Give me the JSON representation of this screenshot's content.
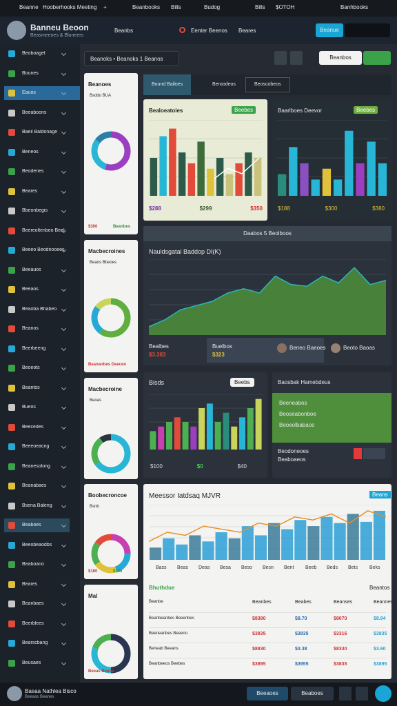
{
  "topbar": {
    "items": [
      "Beanne",
      "Hooberhooks Meeting",
      "+",
      "Beanbooks",
      "Bills",
      "Budog",
      "Bills",
      "$OTOH",
      "Banhbooks"
    ]
  },
  "header": {
    "title": "Banneu Beoon",
    "subtitle": "Beasmeeoes & Bluneers",
    "nav": [
      "Beanbs",
      "Eenter Beenos",
      "Beares"
    ],
    "button": "Beanue"
  },
  "sidebar": {
    "items": [
      "Beoboaget",
      "Bounes",
      "Eauos",
      "Beeaboons",
      "Baeil Baldonage",
      "Beneos",
      "Beodenes",
      "Beares",
      "Bbeonbegis",
      "Beereoltenbeo Beelos",
      "Beeeo Beodnooees",
      "Beeauos",
      "Beeaos",
      "Beaoba Bhabeo",
      "Beanos",
      "Beerbeeng",
      "Beoeots",
      "Beantos",
      "Bueos",
      "Beecedes",
      "Beeeoeacng",
      "Beanesolong",
      "Beanabaes",
      "Bsena Baleng",
      "Beaboes",
      "Beeobeaodbs",
      "Beaboano",
      "Beares",
      "Beanbaes",
      "Beerblees",
      "Bearscbang",
      "Beusaes"
    ]
  },
  "filter": {
    "dropdown": "Beanoks • Beanoks 1 Beanos",
    "button": "Beanbos"
  },
  "tabs": [
    "Bound Bailoes",
    "Beroodeos",
    "Beoscobeos"
  ],
  "left_cards": [
    {
      "title": "Beanoes",
      "subtitle": "Bsddo BUA",
      "donut": {
        "values": [
          55,
          30,
          15
        ],
        "colors": [
          "#9b3fc0",
          "#27b6d6",
          "#2a7fa8"
        ]
      },
      "labels": [
        "$300",
        "Beanbes"
      ]
    },
    {
      "title": "Macbecroines",
      "subtitle": "Beaos Bbeoes",
      "donut": {
        "values": [
          60,
          25,
          15
        ],
        "colors": [
          "#5fae3f",
          "#27a9d6",
          "#c9d45a"
        ]
      },
      "labels": [
        "Beananbes Deecen"
      ]
    },
    {
      "title": "Macbecroine",
      "subtitle": "Beoas",
      "donut": {
        "values": [
          65,
          25,
          10
        ],
        "colors": [
          "#27b6d6",
          "#4caf50",
          "#2a3440"
        ]
      },
      "labels": []
    },
    {
      "title": "Boobecroncoe",
      "subtitle": "Bsnb",
      "donut": {
        "values": [
          25,
          20,
          20,
          20,
          15
        ],
        "colors": [
          "#c73fb0",
          "#27a9d6",
          "#e0c23a",
          "#4caf50",
          "#e24a3a"
        ]
      },
      "labels": [
        "$180",
        "$100"
      ]
    },
    {
      "title": "Mal",
      "subtitle": "",
      "donut": {
        "values": [
          50,
          30,
          20
        ],
        "colors": [
          "#2a3650",
          "#27b6d6",
          "#4caf50"
        ]
      },
      "labels": [
        "Beeas Beane"
      ]
    }
  ],
  "cards": {
    "light": {
      "title": "Bealoeatoies",
      "badge": "Beebes",
      "labels": [
        "$288",
        "$299",
        "$350"
      ],
      "values": [
        35,
        55,
        62,
        40,
        30,
        50,
        25,
        35,
        20,
        30,
        40,
        35
      ],
      "colors": [
        "#2e5a4a",
        "#27b6d6",
        "#e24a3a",
        "#2e5a4a",
        "#e24a3a",
        "#3d6b3a",
        "#e0c23a",
        "#2e5a4a",
        "#c9c27a",
        "#e24a3a",
        "#2e5a4a",
        "#c9c27a"
      ]
    },
    "dark": {
      "title": "Baarlboes Deevor",
      "badge": "Beebes",
      "labels": [
        "$188",
        "$300",
        "$380"
      ],
      "values": [
        20,
        45,
        30,
        15,
        25,
        15,
        60,
        30,
        50,
        30
      ],
      "colors": [
        "#2a8c7a",
        "#27b6d6",
        "#8a4fc0",
        "#27b6d6",
        "#e0c23a",
        "#27b6d6",
        "#27b6d6",
        "#9b3fc0",
        "#27b6d6",
        "#27b6d6"
      ]
    },
    "area": {
      "header": "Daabos 5 Beolboos",
      "title": "Nauldsgatal Baddop DI(K)",
      "values": [
        10,
        18,
        30,
        35,
        40,
        50,
        55,
        50,
        70,
        60,
        58,
        70,
        62,
        80,
        60,
        65
      ],
      "footer": [
        "Bealbes",
        "$3.383",
        "Buelbos",
        "$323",
        "Beneo Baeoes",
        "Beoto Baoas"
      ]
    },
    "bisds": {
      "title": "Bisds",
      "badge": "Beebs",
      "labels": [
        "$100",
        "$0",
        "$40"
      ],
      "values": [
        20,
        25,
        30,
        35,
        30,
        25,
        45,
        50,
        30,
        40,
        25,
        35,
        45,
        55
      ],
      "colors": [
        "#4caf50",
        "#c73fb0",
        "#4caf50",
        "#e24a3a",
        "#4caf50",
        "#9b3fc0",
        "#c9d45a",
        "#27b6d6",
        "#4caf50",
        "#2a8c7a",
        "#c9d45a",
        "#27b6d6",
        "#4caf50",
        "#c9d45a"
      ]
    },
    "green": {
      "title": "Baosbak Hamebdeus",
      "lines": [
        "Beeneabos",
        "Beoseabonboe",
        "Beoeolbabaos"
      ],
      "footer": [
        "Beodoneoes",
        "Beaboaeos"
      ]
    },
    "big": {
      "title": "Meessor Iatdsaq MJVR",
      "badge": "Beans",
      "bars": [
        20,
        35,
        25,
        40,
        30,
        45,
        35,
        55,
        40,
        60,
        50,
        65,
        55,
        70,
        60,
        75,
        62,
        80
      ],
      "line": [
        30,
        45,
        40,
        55,
        50,
        45,
        60,
        55,
        70,
        65,
        75,
        60,
        80,
        70
      ],
      "xlabels": [
        "Bass",
        "Beas",
        "Deas",
        "Besa",
        "Beso",
        "Besn",
        "Bent",
        "Beeb",
        "Beds",
        "Bets",
        "Beks"
      ],
      "table_title": "Bhuthdue",
      "table_note": "Beantos",
      "table": {
        "header": [
          "Beanbe",
          "Beanbes",
          "Beabes",
          "Beanses",
          "Beannes"
        ],
        "rows": [
          [
            "Beanbeanbes Beeenbes",
            "$8380",
            "$8.70",
            "$8070",
            "$8.84"
          ],
          [
            "Beeneanbes Beeeno",
            "$3835",
            "$3835",
            "$3316",
            "$3835"
          ],
          [
            "Beneab Beeans",
            "$8830",
            "$3.38",
            "$8330",
            "$3.60"
          ],
          [
            "Beanbeeos Beebes",
            "$3895",
            "$3955",
            "$3835",
            "$3895"
          ]
        ]
      }
    }
  },
  "footer": {
    "name": "Baeaa Nathlea Bisco",
    "sub": "Beeaas Beanes",
    "buttons": [
      "Beeaoes",
      "Beaboes"
    ]
  }
}
